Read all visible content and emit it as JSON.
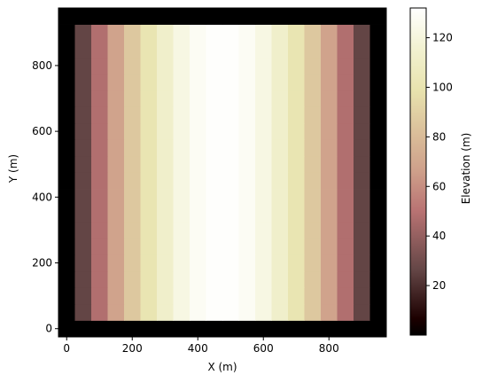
{
  "chart_data": {
    "type": "heatmap",
    "title": "",
    "xlabel": "X (m)",
    "ylabel": "Y (m)",
    "xlim": [
      -25,
      975
    ],
    "ylim": [
      -25,
      975
    ],
    "xticks": [
      0,
      200,
      400,
      600,
      800
    ],
    "yticks": [
      0,
      200,
      400,
      600,
      800
    ],
    "grid": false,
    "cell_size": 50,
    "x_centers": [
      0,
      50,
      100,
      150,
      200,
      250,
      300,
      350,
      400,
      450,
      500,
      550,
      600,
      650,
      700,
      750,
      800,
      850,
      900,
      950
    ],
    "y_centers": [
      0,
      50,
      100,
      150,
      200,
      250,
      300,
      350,
      400,
      450,
      500,
      550,
      600,
      650,
      700,
      750,
      800,
      850,
      900,
      950
    ],
    "column_values": [
      4,
      26,
      48,
      68,
      86,
      101,
      113,
      122,
      128,
      131,
      131,
      128,
      122,
      113,
      101,
      86,
      68,
      48,
      26,
      4
    ],
    "boundary_value": 0,
    "colorbar": {
      "label": "Elevation (m)",
      "range": [
        0,
        132
      ],
      "ticks": [
        20,
        40,
        60,
        80,
        100,
        120
      ]
    },
    "colormap_stops": [
      {
        "v": 0.0,
        "color": "#000000"
      },
      {
        "v": 0.05,
        "color": "#1c0000"
      },
      {
        "v": 0.2,
        "color": "#644646"
      },
      {
        "v": 0.38,
        "color": "#b97373"
      },
      {
        "v": 0.5,
        "color": "#ce9f8a"
      },
      {
        "v": 0.62,
        "color": "#dabf9a"
      },
      {
        "v": 0.75,
        "color": "#e8e3ae"
      },
      {
        "v": 0.88,
        "color": "#f2f2d2"
      },
      {
        "v": 1.0,
        "color": "#ffffff"
      }
    ]
  }
}
